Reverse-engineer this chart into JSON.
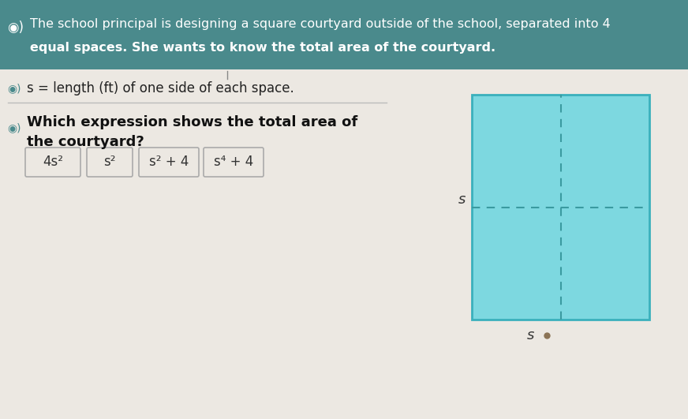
{
  "bg_color": "#e8e4de",
  "header_color": "#4a8a8c",
  "header_text_line1": "The school principal is designing a square courtyard outside of the school, separated into 4",
  "header_text_line2": "equal spaces. She wants to know the total area of the courtyard.",
  "header_text_color": "#ffffff",
  "body_bg": "#ece8e2",
  "speaker_icon_color": "#4a8a8c",
  "line1_text": "s = length (ft) of one side of each space.",
  "line2_text_bold": "Which expression shows the total area of",
  "line3_text_bold": "the courtyard?",
  "button_labels": [
    "4s²",
    "s²",
    "s² + 4",
    "s⁴ + 4"
  ],
  "button_bg": "#ece8e2",
  "button_border": "#aaaaaa",
  "button_text_color": "#333333",
  "square_fill": "#7dd8e0",
  "square_border": "#3ab0bc",
  "dashed_color": "#3a9aa0",
  "label_s_color": "#333333"
}
